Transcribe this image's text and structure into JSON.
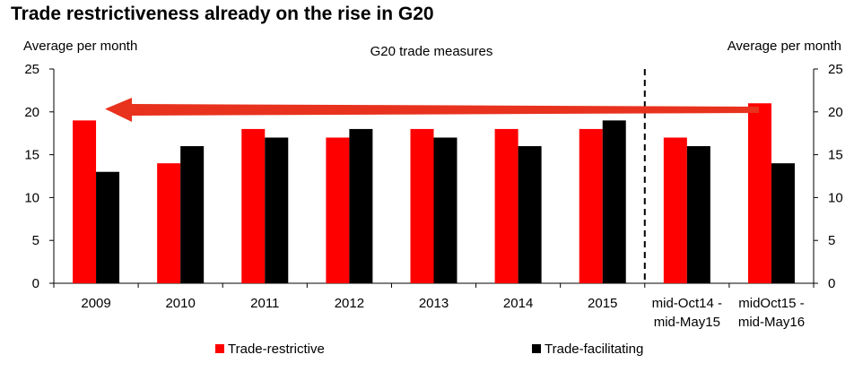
{
  "chart_data": {
    "type": "bar",
    "title": "Trade restrictiveness already on the rise in G20",
    "subtitle": "G20 trade measures",
    "ylabel_left": "Average per month",
    "ylabel_right": "Average per month",
    "ylim": [
      0,
      25
    ],
    "yticks": [
      0,
      5,
      10,
      15,
      20,
      25
    ],
    "categories": [
      "2009",
      "2010",
      "2011",
      "2012",
      "2013",
      "2014",
      "2015",
      [
        "mid-Oct14 -",
        "mid-May15"
      ],
      [
        "midOct15 -",
        "mid-May16"
      ]
    ],
    "series": [
      {
        "name": "Trade-restrictive",
        "color": "#ff0000",
        "values": [
          19,
          14,
          18,
          17,
          18,
          18,
          18,
          17,
          21
        ]
      },
      {
        "name": "Trade-facilitating",
        "color": "#000000",
        "values": [
          13,
          16,
          17,
          18,
          17,
          16,
          19,
          16,
          14
        ]
      }
    ],
    "legend_position": "bottom",
    "grid": false,
    "separator_after_category": 7,
    "annotation": {
      "type": "arrow",
      "color": "#e8321e",
      "direction": "left",
      "from_category": 8,
      "to_category": 0
    }
  }
}
